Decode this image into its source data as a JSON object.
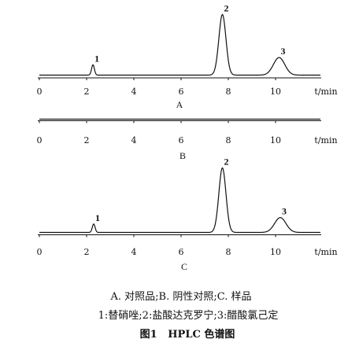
{
  "colors": {
    "trace": "#111111",
    "background": "#ffffff"
  },
  "chart_data": [
    {
      "type": "line",
      "panel_label": "A",
      "x_unit": "t/min",
      "xlim": [
        0,
        11.9
      ],
      "x_ticks": [
        "0",
        "2",
        "4",
        "6",
        "8",
        "10"
      ],
      "grid": false,
      "peaks": [
        {
          "label": "1",
          "t": 2.27,
          "relative_height": 0.17,
          "width_min": 0.06
        },
        {
          "label": "2",
          "t": 7.75,
          "relative_height": 1.0,
          "width_min": 0.15
        },
        {
          "label": "3",
          "t": 10.15,
          "relative_height": 0.29,
          "width_min": 0.24
        }
      ]
    },
    {
      "type": "line",
      "panel_label": "B",
      "x_unit": "t/min",
      "xlim": [
        0,
        11.9
      ],
      "x_ticks": [
        "0",
        "2",
        "4",
        "6",
        "8",
        "10"
      ],
      "grid": false,
      "peaks": []
    },
    {
      "type": "line",
      "panel_label": "C",
      "x_unit": "t/min",
      "xlim": [
        0,
        11.9
      ],
      "x_ticks": [
        "0",
        "2",
        "4",
        "6",
        "8",
        "10"
      ],
      "grid": false,
      "peaks": [
        {
          "label": "1",
          "t": 2.3,
          "relative_height": 0.13,
          "width_min": 0.06
        },
        {
          "label": "2",
          "t": 7.75,
          "relative_height": 1.0,
          "width_min": 0.15
        },
        {
          "label": "3",
          "t": 10.2,
          "relative_height": 0.23,
          "width_min": 0.24
        }
      ]
    }
  ],
  "caption": {
    "panel_legend": "A. 对照品;B. 阴性对照;C. 样品",
    "peak_legend": "1:替硝唑;2:盐酸达克罗宁;3:醋酸氯己定",
    "title": "图1   HPLC 色谱图"
  }
}
